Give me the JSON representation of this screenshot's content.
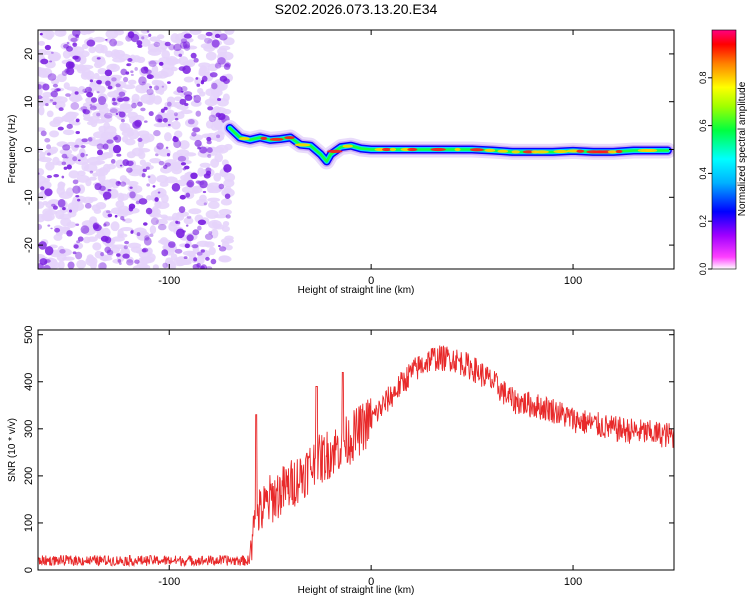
{
  "title": "S202.2026.073.13.20.E34",
  "colors": {
    "signal_line": "#e8292a",
    "speckle_core": "#7a1fe0",
    "speckle_halo": "#e6d4fb",
    "axis": "#000000",
    "colormap": [
      "#ffffff",
      "#ff00ff",
      "#8000ff",
      "#0000ff",
      "#00ffff",
      "#00ff00",
      "#ffff00",
      "#ff8000",
      "#ff0000",
      "#ff0080"
    ]
  },
  "chart_data": [
    {
      "type": "heatmap",
      "xlabel": "Height of straight line (km)",
      "ylabel": "Frequency (Hz)",
      "xlim": [
        -165,
        150
      ],
      "ylim": [
        -25,
        25
      ],
      "xticks": [
        -100,
        0,
        100
      ],
      "yticks": [
        -20,
        -10,
        0,
        10,
        20
      ],
      "noise_region_x": [
        -165,
        -70
      ],
      "ridge_x": [
        -70,
        -65,
        -60,
        -55,
        -50,
        -45,
        -40,
        -35,
        -30,
        -25,
        -22,
        -20,
        -15,
        -10,
        -5,
        0,
        10,
        20,
        30,
        40,
        50,
        60,
        70,
        80,
        90,
        100,
        110,
        120,
        130,
        140,
        147
      ],
      "ridge_hz": [
        4.5,
        2.5,
        2.0,
        2.5,
        2.0,
        2.2,
        2.5,
        1.0,
        0.8,
        -1.0,
        -2.5,
        -1.0,
        0.5,
        0.8,
        0.2,
        0.0,
        0.0,
        0.0,
        0.0,
        0.0,
        0.0,
        -0.2,
        -0.5,
        -0.5,
        -0.5,
        -0.3,
        -0.5,
        -0.5,
        -0.2,
        -0.2,
        -0.2
      ],
      "colorbar": {
        "label": "Normalized spectral amplitude",
        "range": [
          0,
          1
        ],
        "ticks": [
          "0.0",
          "0.2",
          "0.4",
          "0.6",
          "0.8"
        ]
      }
    },
    {
      "type": "line",
      "xlabel": "Height of straight line (km)",
      "ylabel": "SNR (10 * v/v)",
      "xlim": [
        -165,
        150
      ],
      "ylim": [
        0,
        510
      ],
      "xticks": [
        -100,
        0,
        100
      ],
      "yticks": [
        0,
        100,
        200,
        300,
        400,
        500
      ],
      "envelope_x": [
        -165,
        -60,
        -58,
        -55,
        -50,
        -40,
        -30,
        -20,
        -10,
        0,
        10,
        20,
        30,
        40,
        50,
        60,
        70,
        80,
        90,
        100,
        110,
        120,
        130,
        140,
        150
      ],
      "envelope_y": [
        20,
        20,
        140,
        120,
        150,
        180,
        220,
        250,
        280,
        320,
        370,
        420,
        450,
        450,
        430,
        400,
        360,
        350,
        340,
        320,
        310,
        300,
        295,
        290,
        285
      ],
      "spikes": [
        {
          "x": -57,
          "y": 330
        },
        {
          "x": -27,
          "y": 390
        },
        {
          "x": -14,
          "y": 420
        }
      ]
    }
  ]
}
